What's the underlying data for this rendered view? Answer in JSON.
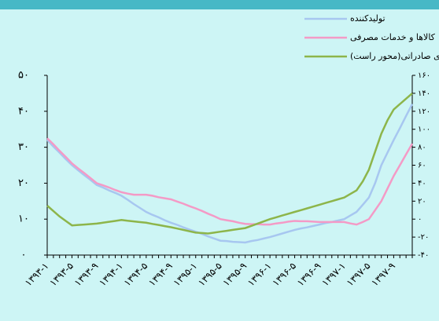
{
  "chart_data": {
    "type": "line",
    "categories": [
      "۱۳۹۳-۱",
      null,
      null,
      null,
      "۱۳۹۳-۵",
      null,
      null,
      null,
      "۱۳۹۳-۹",
      null,
      null,
      null,
      "۱۳۹۴-۱",
      null,
      null,
      null,
      "۱۳۹۴-۵",
      null,
      null,
      null,
      "۱۳۹۴-۹",
      null,
      null,
      null,
      "۱۳۹۵-۱",
      null,
      null,
      null,
      "۱۳۹۵-۵",
      null,
      null,
      null,
      "۱۳۹۵-۹",
      null,
      null,
      null,
      "۱۳۹۶-۱",
      null,
      null,
      null,
      "۱۳۹۶-۵",
      null,
      null,
      null,
      "۱۳۹۶-۹",
      null,
      null,
      null,
      "۱۳۹۷-۱",
      null,
      null,
      null,
      "۱۳۹۷-۵",
      null,
      null,
      null,
      "۱۳۹۷-۹",
      null,
      null,
      null
    ],
    "series": [
      {
        "name": "تولیدکننده",
        "color": "#a7c7f0",
        "values": [
          32,
          30.2,
          28.5,
          26.7,
          25,
          23.6,
          22.2,
          20.9,
          19.5,
          18.8,
          18,
          17.3,
          16.5,
          15.4,
          14.2,
          13.1,
          12,
          11.2,
          10.5,
          9.7,
          9,
          8.4,
          7.7,
          7.1,
          6.5,
          5.9,
          5.2,
          4.6,
          4,
          3.9,
          3.7,
          3.6,
          3.5,
          3.9,
          4.2,
          4.6,
          5,
          5.5,
          6,
          6.5,
          7,
          7.4,
          7.7,
          8.1,
          8.5,
          8.9,
          9.2,
          9.6,
          10,
          11,
          12,
          14,
          16,
          20,
          25,
          28.5,
          32,
          35.3,
          38.7,
          42
        ]
      },
      {
        "name": "کالاها و خدمات مصرفی",
        "color": "#f49ac6",
        "values": [
          32.5,
          30.8,
          29,
          27.3,
          25.5,
          24.1,
          22.8,
          21.4,
          20,
          19.4,
          18.8,
          18.1,
          17.5,
          17.1,
          16.8,
          16.8,
          16.8,
          16.5,
          16.1,
          15.8,
          15.5,
          14.9,
          14.3,
          13.6,
          13,
          12.3,
          11.5,
          10.8,
          10,
          9.7,
          9.4,
          9,
          8.7,
          8.6,
          8.6,
          8.5,
          8.5,
          8.8,
          9,
          9.3,
          9.5,
          9.4,
          9.4,
          9.3,
          9.2,
          9.2,
          9.2,
          9.2,
          9.2,
          8.8,
          8.5,
          9.2,
          10,
          12.5,
          15,
          18.5,
          22,
          25,
          28,
          31
        ]
      },
      {
        "name": "کالاهای صادراتی(محور راست)",
        "color": "#8db54a",
        "axis": "y2",
        "values": [
          15,
          9,
          3,
          -2,
          -7,
          -6.5,
          -6,
          -5.5,
          -5,
          -4,
          -3,
          -2,
          -1,
          -1.8,
          -2.5,
          -3.3,
          -4,
          -5.3,
          -6.5,
          -7.8,
          -9,
          -10.5,
          -12,
          -13.5,
          -15,
          -15.5,
          -16,
          -15,
          -14,
          -13,
          -12,
          -11,
          -10,
          -7.5,
          -5,
          -2.5,
          0,
          2,
          4,
          6,
          8,
          10,
          12,
          14,
          16,
          18,
          20,
          22,
          24,
          28,
          32,
          42,
          55,
          75,
          95,
          110,
          122,
          128,
          134,
          140
        ]
      }
    ],
    "ylim": [
      0,
      50
    ],
    "yticks": [
      {
        "value": 0,
        "label": "۰"
      },
      {
        "value": 10,
        "label": "۱۰"
      },
      {
        "value": 20,
        "label": "۲۰"
      },
      {
        "value": 30,
        "label": "۳۰"
      },
      {
        "value": 40,
        "label": "۴۰"
      },
      {
        "value": 50,
        "label": "۵۰"
      }
    ],
    "y2lim": [
      -40,
      160
    ],
    "y2ticks": [
      {
        "value": -40,
        "label": "-۴۰"
      },
      {
        "value": -20,
        "label": "-۲۰"
      },
      {
        "value": 0,
        "label": "۰"
      },
      {
        "value": 20,
        "label": "۲۰"
      },
      {
        "value": 40,
        "label": "۴۰"
      },
      {
        "value": 60,
        "label": "۶۰"
      },
      {
        "value": 80,
        "label": "۸۰"
      },
      {
        "value": 100,
        "label": "۱۰۰"
      },
      {
        "value": 120,
        "label": "۱۲۰"
      },
      {
        "value": 140,
        "label": "۱۴۰"
      },
      {
        "value": 160,
        "label": "۱۶۰"
      }
    ],
    "legend": "top-right"
  }
}
